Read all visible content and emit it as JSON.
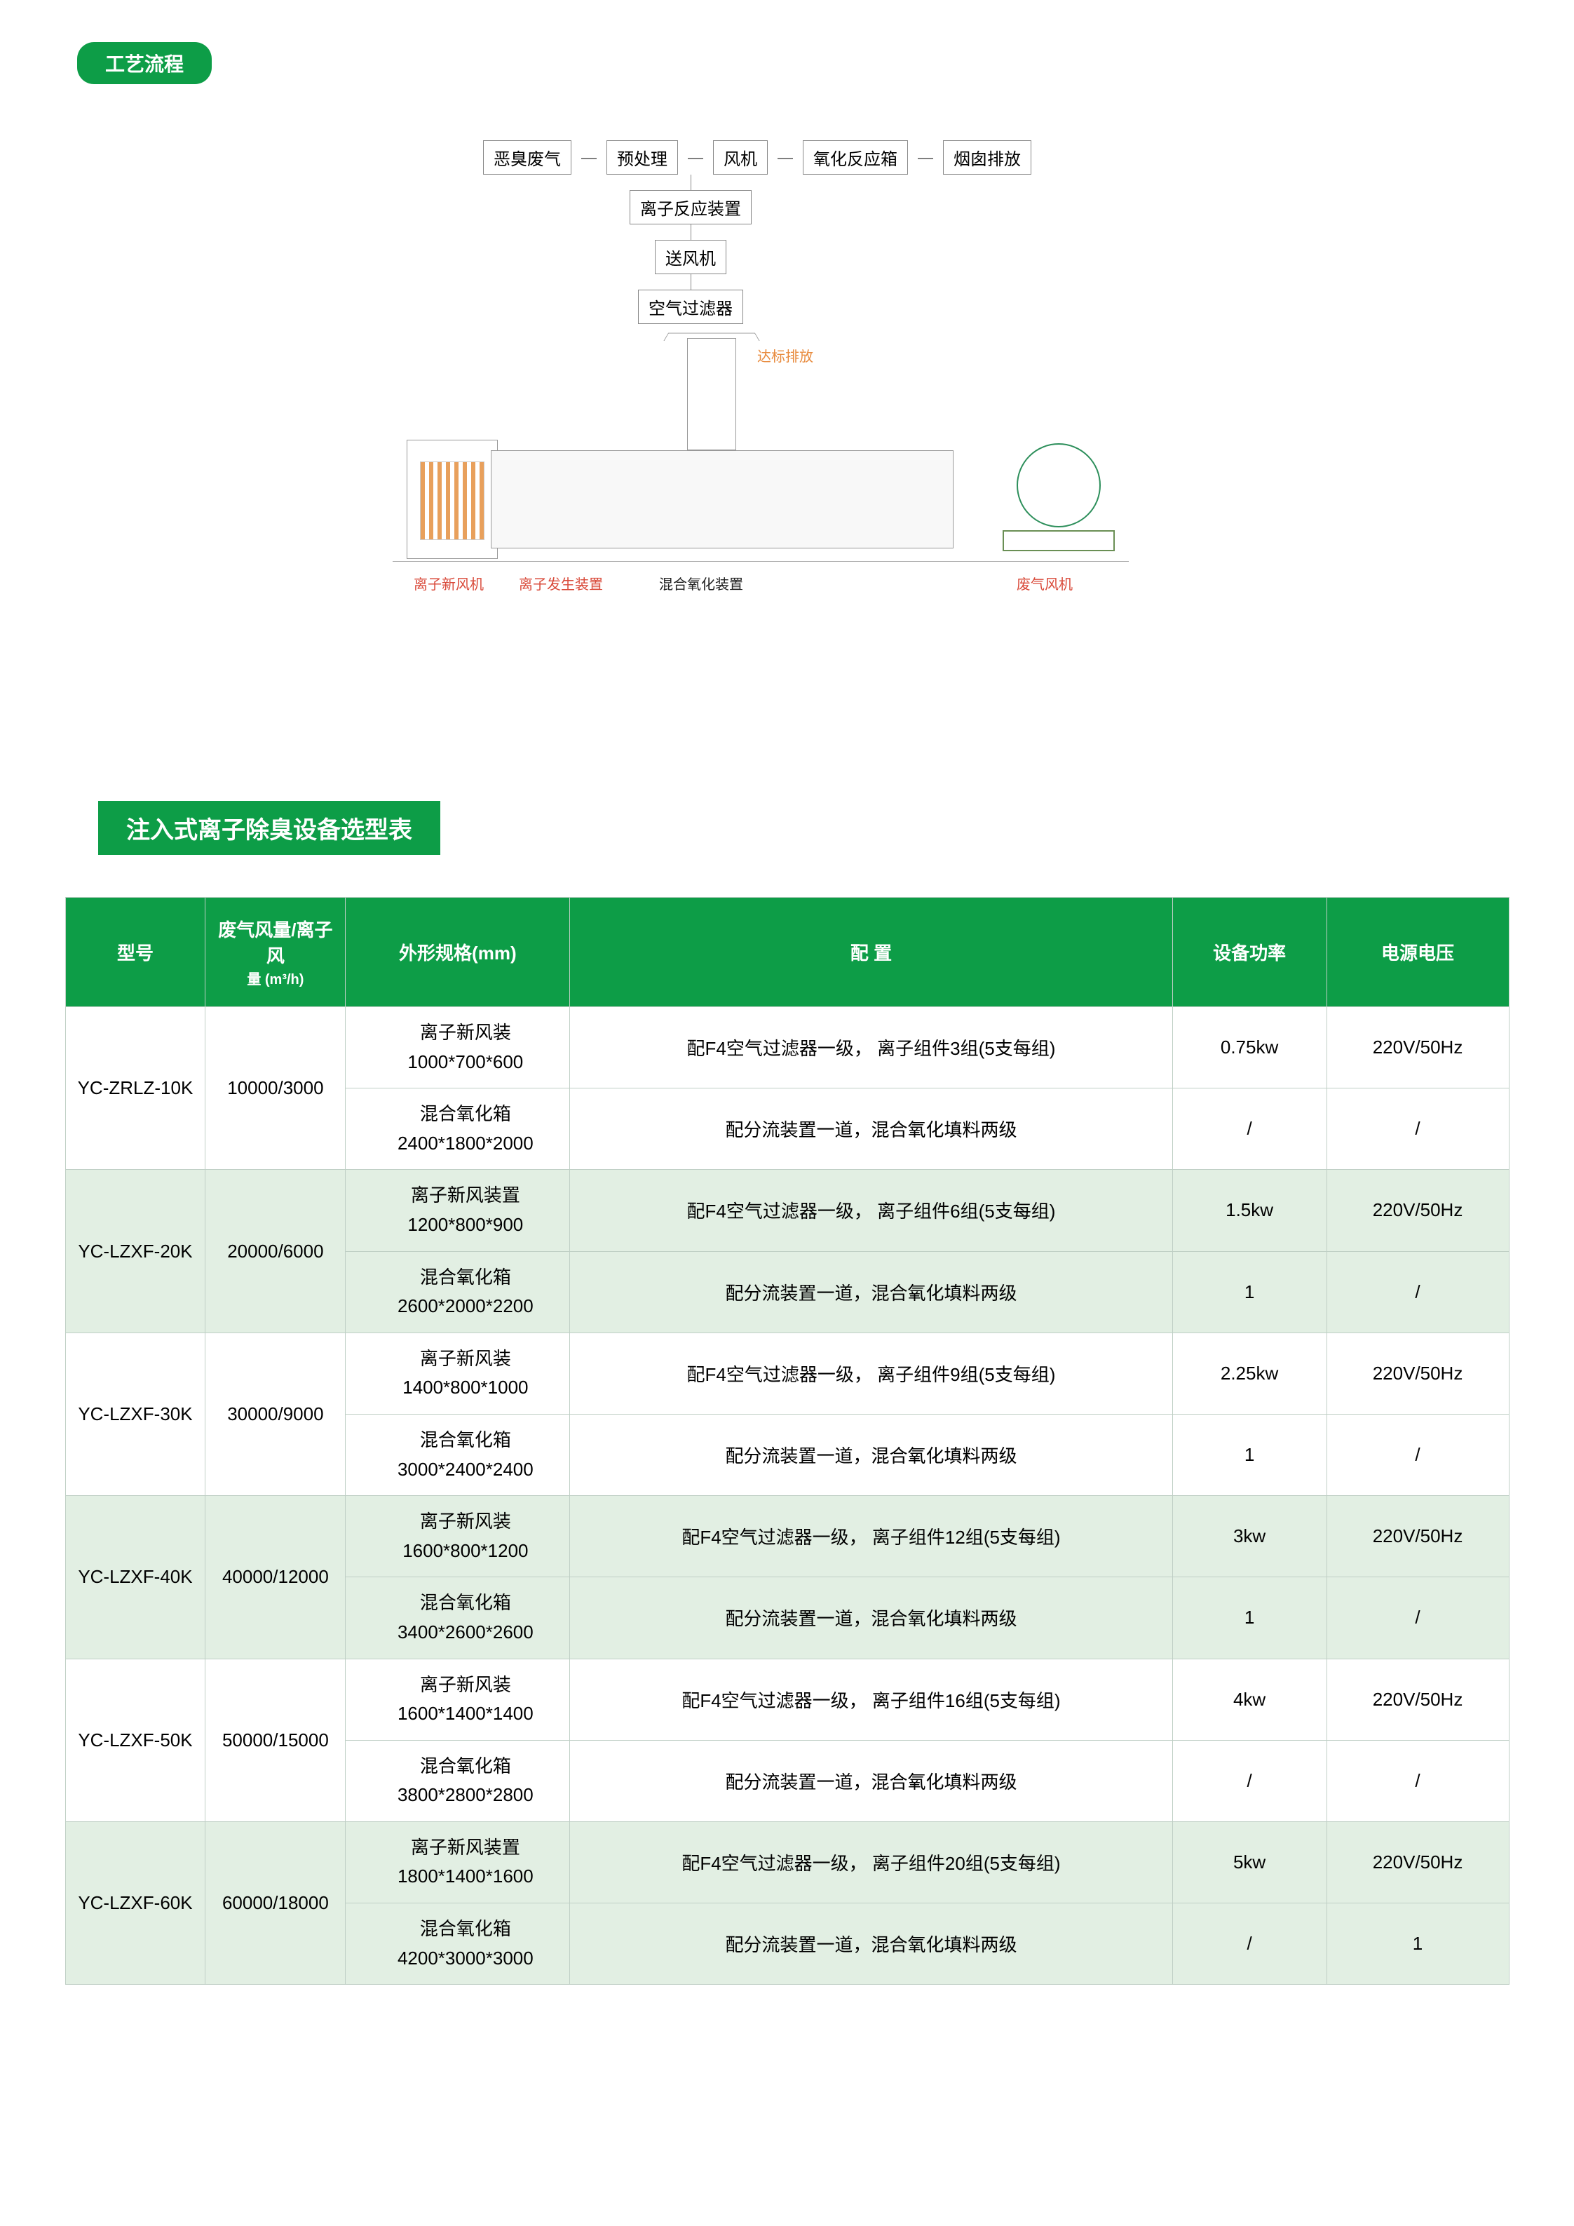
{
  "badge": "工艺流程",
  "flow": {
    "row": [
      "恶臭废气",
      "预处理",
      "风机",
      "氧化反应箱",
      "烟囱排放"
    ],
    "dash": "—",
    "v": [
      "离子反应装置",
      "送风机",
      "空气过滤器"
    ]
  },
  "schematic": {
    "stack_label": "达标排放",
    "l1": "离子新风机",
    "l2": "离子发生装置",
    "l3": "混合氧化装置",
    "l4": "废气风机"
  },
  "table": {
    "title": "注入式离子除臭设备选型表",
    "headers": {
      "model": "型号",
      "air": "废气风量/离子 风",
      "air_sub": "量 (m³/h)",
      "dims": "外形规格(mm)",
      "config": "配 置",
      "power": "设备功率",
      "volt": "电源电压"
    },
    "rows": [
      {
        "model": "YC-ZRLZ-10K",
        "air": "10000/3000",
        "alt": false,
        "a": {
          "d1": "离子新风装",
          "d2": "1000*700*600",
          "cfg": "配F4空气过滤器一级，  离子组件3组(5支每组)",
          "pw": "0.75kw",
          "vt": "220V/50Hz"
        },
        "b": {
          "d1": "混合氧化箱",
          "d2": "2400*1800*2000",
          "cfg": "配分流装置一道，混合氧化填料两级",
          "pw": "/",
          "vt": "/"
        }
      },
      {
        "model": "YC-LZXF-20K",
        "air": "20000/6000",
        "alt": true,
        "a": {
          "d1": "离子新风装置",
          "d2": "1200*800*900",
          "cfg": "配F4空气过滤器一级，  离子组件6组(5支每组)",
          "pw": "1.5kw",
          "vt": "220V/50Hz"
        },
        "b": {
          "d1": "混合氧化箱",
          "d2": "2600*2000*2200",
          "cfg": "配分流装置一道，混合氧化填料两级",
          "pw": "1",
          "vt": "/"
        }
      },
      {
        "model": "YC-LZXF-30K",
        "air": "30000/9000",
        "alt": false,
        "a": {
          "d1": "离子新风装",
          "d2": "1400*800*1000",
          "cfg": "配F4空气过滤器一级，  离子组件9组(5支每组)",
          "pw": "2.25kw",
          "vt": "220V/50Hz"
        },
        "b": {
          "d1": "混合氧化箱",
          "d2": "3000*2400*2400",
          "cfg": "配分流装置一道，混合氧化填料两级",
          "pw": "1",
          "vt": "/"
        }
      },
      {
        "model": "YC-LZXF-40K",
        "air": "40000/12000",
        "alt": true,
        "a": {
          "d1": "离子新风装",
          "d2": "1600*800*1200",
          "cfg": "配F4空气过滤器一级，  离子组件12组(5支每组)",
          "pw": "3kw",
          "vt": "220V/50Hz"
        },
        "b": {
          "d1": "混合氧化箱",
          "d2": "3400*2600*2600",
          "cfg": "配分流装置一道，混合氧化填料两级",
          "pw": "1",
          "vt": "/"
        }
      },
      {
        "model": "YC-LZXF-50K",
        "air": "50000/15000",
        "alt": false,
        "a": {
          "d1": "离子新风装",
          "d2": "1600*1400*1400",
          "cfg": "配F4空气过滤器一级，  离子组件16组(5支每组)",
          "pw": "4kw",
          "vt": "220V/50Hz"
        },
        "b": {
          "d1": "混合氧化箱",
          "d2": "3800*2800*2800",
          "cfg": "配分流装置一道，混合氧化填料两级",
          "pw": "/",
          "vt": "/"
        }
      },
      {
        "model": "YC-LZXF-60K",
        "air": "60000/18000",
        "alt": true,
        "a": {
          "d1": "离子新风装置",
          "d2": "1800*1400*1600",
          "cfg": "配F4空气过滤器一级，  离子组件20组(5支每组)",
          "pw": "5kw",
          "vt": "220V/50Hz"
        },
        "b": {
          "d1": "混合氧化箱",
          "d2": "4200*3000*3000",
          "cfg": "配分流装置一道，混合氧化填料两级",
          "pw": "/",
          "vt": "1"
        }
      }
    ]
  }
}
